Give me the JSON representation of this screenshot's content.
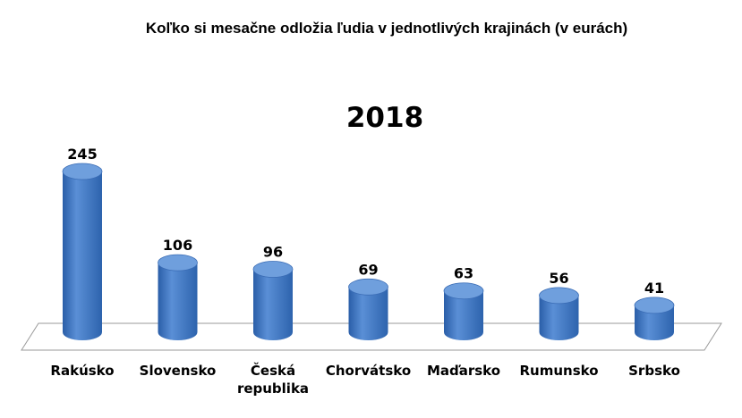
{
  "chart_data": {
    "type": "bar",
    "title": "Koľko si mesačne odložia ľudia v jednotlivých krajinách (v eurách)",
    "subtitle": "2018",
    "categories": [
      "Rakúsko",
      "Slovensko",
      "Česká republika",
      "Chorvátsko",
      "Maďarsko",
      "Rumunsko",
      "Srbsko"
    ],
    "values": [
      245,
      106,
      96,
      69,
      63,
      56,
      41
    ],
    "data_labels": [
      "245",
      "106",
      "96",
      "69",
      "63",
      "56",
      "41"
    ],
    "ylim": [
      0,
      250
    ],
    "grid": false,
    "legend": "none",
    "bar_color": "#3a72c0",
    "bar_top_color": "#6f9fdd"
  }
}
